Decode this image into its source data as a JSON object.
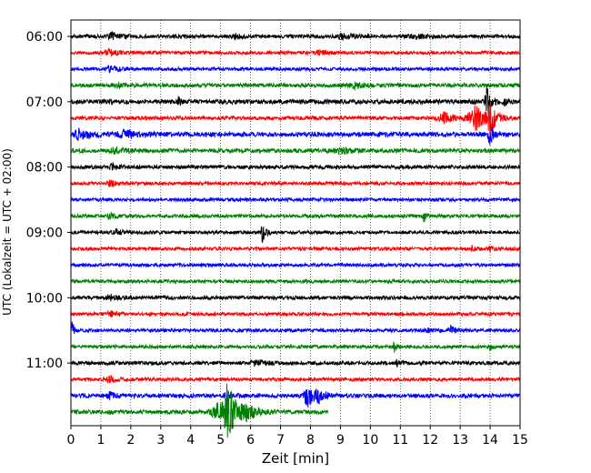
{
  "chart_data": {
    "type": "line",
    "title": "",
    "xlabel": "Zeit  [min]",
    "ylabel": "UTC (Lokalzeit = UTC + 02:00)",
    "xlim": [
      0,
      15
    ],
    "x_ticks": [
      0,
      1,
      2,
      3,
      4,
      5,
      6,
      7,
      8,
      9,
      10,
      11,
      12,
      13,
      14,
      15
    ],
    "x_tick_labels": [
      "0",
      "1",
      "2",
      "3",
      "4",
      "5",
      "6",
      "7",
      "8",
      "9",
      "10",
      "11",
      "12",
      "13",
      "14",
      "15"
    ],
    "y_tick_labels": [
      "06:00",
      "07:00",
      "08:00",
      "09:00",
      "10:00",
      "11:00"
    ],
    "grid": "vertical dotted",
    "trace_interval_min": 15,
    "trace_colors": [
      "#000000",
      "#ff0000",
      "#0000ff",
      "#008000"
    ],
    "series": [
      {
        "start": "06:00",
        "color": "#000000",
        "noise": 2.0,
        "events": [
          [
            1.4,
            4,
            0.25
          ],
          [
            5.5,
            2.5,
            0.2
          ],
          [
            9.1,
            3,
            0.3
          ],
          [
            11.5,
            2.5,
            0.25
          ]
        ]
      },
      {
        "start": "06:15",
        "color": "#ff0000",
        "noise": 1.8,
        "events": [
          [
            1.3,
            3,
            0.3
          ],
          [
            8.3,
            2.5,
            0.2
          ]
        ]
      },
      {
        "start": "06:30",
        "color": "#0000ff",
        "noise": 1.8,
        "events": [
          [
            1.3,
            3,
            0.3
          ]
        ]
      },
      {
        "start": "06:45",
        "color": "#008000",
        "noise": 2.2,
        "events": [
          [
            1.5,
            3,
            0.2
          ],
          [
            9.5,
            2.5,
            0.3
          ]
        ]
      },
      {
        "start": "07:00",
        "color": "#000000",
        "noise": 2.5,
        "events": [
          [
            3.6,
            5,
            0.05
          ],
          [
            13.9,
            18,
            0.12
          ],
          [
            14.5,
            4,
            0.08
          ]
        ]
      },
      {
        "start": "07:15",
        "color": "#ff0000",
        "noise": 2.0,
        "events": [
          [
            12.5,
            5,
            0.4
          ],
          [
            13.5,
            14,
            0.35
          ],
          [
            14.0,
            22,
            0.12
          ]
        ]
      },
      {
        "start": "07:30",
        "color": "#0000ff",
        "noise": 2.5,
        "events": [
          [
            0.3,
            6,
            0.3
          ],
          [
            1.8,
            4,
            0.4
          ],
          [
            14.0,
            12,
            0.12
          ]
        ]
      },
      {
        "start": "07:45",
        "color": "#008000",
        "noise": 2.2,
        "events": [
          [
            1.5,
            3,
            0.3
          ],
          [
            9.0,
            3,
            0.4
          ]
        ]
      },
      {
        "start": "08:00",
        "color": "#000000",
        "noise": 2.0,
        "events": [
          [
            1.4,
            3,
            0.2
          ]
        ]
      },
      {
        "start": "08:15",
        "color": "#ff0000",
        "noise": 1.8,
        "events": [
          [
            1.3,
            3,
            0.2
          ]
        ]
      },
      {
        "start": "08:30",
        "color": "#0000ff",
        "noise": 1.8,
        "events": []
      },
      {
        "start": "08:45",
        "color": "#008000",
        "noise": 1.8,
        "events": [
          [
            1.3,
            3,
            0.2
          ],
          [
            11.8,
            6,
            0.08
          ]
        ]
      },
      {
        "start": "09:00",
        "color": "#000000",
        "noise": 1.8,
        "events": [
          [
            1.5,
            3,
            0.2
          ],
          [
            6.4,
            10,
            0.12
          ]
        ]
      },
      {
        "start": "09:15",
        "color": "#ff0000",
        "noise": 1.8,
        "events": [
          [
            13.4,
            3,
            0.1
          ],
          [
            14.0,
            3,
            0.1
          ]
        ]
      },
      {
        "start": "09:30",
        "color": "#0000ff",
        "noise": 1.8,
        "events": []
      },
      {
        "start": "09:45",
        "color": "#008000",
        "noise": 1.8,
        "events": []
      },
      {
        "start": "10:00",
        "color": "#000000",
        "noise": 2.0,
        "events": [
          [
            1.3,
            3,
            0.2
          ]
        ]
      },
      {
        "start": "10:15",
        "color": "#ff0000",
        "noise": 1.8,
        "events": [
          [
            1.3,
            3,
            0.2
          ]
        ]
      },
      {
        "start": "10:30",
        "color": "#0000ff",
        "noise": 1.8,
        "events": [
          [
            0.05,
            12,
            0.05
          ],
          [
            12.7,
            4,
            0.15
          ],
          [
            11.9,
            2.5,
            0.1
          ]
        ]
      },
      {
        "start": "10:45",
        "color": "#008000",
        "noise": 1.8,
        "events": [
          [
            10.8,
            5,
            0.08
          ],
          [
            14.0,
            3,
            0.1
          ]
        ]
      },
      {
        "start": "11:00",
        "color": "#000000",
        "noise": 2.0,
        "events": [
          [
            6.2,
            3,
            0.3
          ],
          [
            10.9,
            3,
            0.1
          ]
        ]
      },
      {
        "start": "11:15",
        "color": "#ff0000",
        "noise": 1.8,
        "events": [
          [
            1.3,
            3,
            0.2
          ]
        ]
      },
      {
        "start": "11:30",
        "color": "#0000ff",
        "noise": 2.2,
        "events": [
          [
            1.3,
            3,
            0.2
          ],
          [
            5.2,
            6,
            0.15
          ],
          [
            7.9,
            14,
            0.18
          ],
          [
            8.3,
            5,
            0.25
          ]
        ]
      },
      {
        "start": "11:45",
        "color": "#008000",
        "noise": 2.2,
        "events": [
          [
            4.9,
            9,
            0.35
          ],
          [
            5.25,
            28,
            0.25
          ],
          [
            5.9,
            6,
            0.4
          ]
        ],
        "end_min": 8.6
      }
    ]
  }
}
